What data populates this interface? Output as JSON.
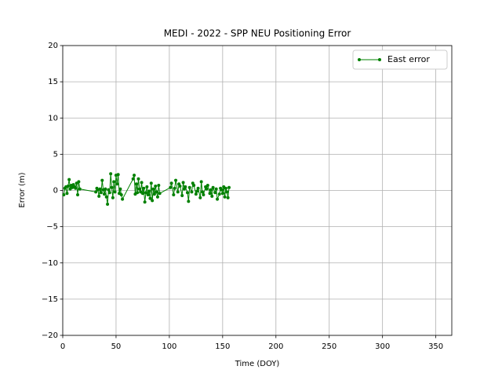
{
  "chart_data": {
    "type": "line",
    "title": "MEDI - 2022 - SPP NEU Positioning Error",
    "xlabel": "Time (DOY)",
    "ylabel": "Error (m)",
    "x": [
      1,
      2,
      3,
      4,
      5,
      6,
      7,
      8,
      9,
      10,
      11,
      12,
      13,
      14,
      15,
      16,
      31,
      32,
      33,
      34,
      35,
      36,
      37,
      38,
      39,
      40,
      41,
      42,
      43,
      44,
      45,
      46,
      47,
      48,
      49,
      50,
      51,
      52,
      53,
      54,
      55,
      56,
      66,
      67,
      68,
      69,
      70,
      71,
      72,
      73,
      74,
      75,
      76,
      77,
      78,
      79,
      80,
      81,
      82,
      83,
      84,
      85,
      86,
      87,
      88,
      89,
      90,
      91,
      101,
      102,
      104,
      105,
      106,
      108,
      109,
      110,
      112,
      113,
      114,
      115,
      117,
      118,
      119,
      121,
      122,
      123,
      125,
      126,
      127,
      129,
      130,
      131,
      132,
      134,
      135,
      136,
      138,
      139,
      140,
      141,
      143,
      144,
      145,
      147,
      148,
      149,
      150,
      151,
      152,
      153,
      154,
      155,
      156
    ],
    "series": [
      {
        "name": "East error",
        "color": "#008000",
        "values": [
          -0.6,
          0.3,
          0.5,
          -0.4,
          0.6,
          1.5,
          0.2,
          0.7,
          0.4,
          0.8,
          0.5,
          0.3,
          1.0,
          -0.6,
          1.2,
          0.2,
          -0.2,
          0.3,
          0.1,
          -0.8,
          0.2,
          -0.3,
          1.4,
          0.1,
          -0.5,
          0.2,
          -0.9,
          -1.9,
          0.1,
          -0.3,
          2.3,
          0.4,
          -1.0,
          1.2,
          -0.2,
          2.1,
          0.9,
          2.2,
          -0.4,
          0.2,
          -0.6,
          -1.2,
          1.6,
          2.1,
          -0.5,
          0.9,
          -0.3,
          1.6,
          0.2,
          -0.2,
          1.1,
          -0.4,
          0.3,
          -1.6,
          -0.3,
          0.5,
          -0.6,
          -0.1,
          -1.1,
          1.0,
          -1.4,
          0.2,
          -0.5,
          0.6,
          -0.2,
          -0.9,
          0.7,
          -0.4,
          0.4,
          1.0,
          -0.6,
          0.3,
          1.4,
          -0.2,
          0.9,
          0.6,
          -0.7,
          1.1,
          0.2,
          0.5,
          -0.3,
          -1.5,
          0.4,
          -0.2,
          1.0,
          0.7,
          -0.5,
          -0.1,
          0.3,
          -1.0,
          1.2,
          -0.2,
          -0.6,
          0.5,
          0.2,
          0.7,
          -0.4,
          0.1,
          -0.8,
          0.4,
          -0.3,
          0.2,
          -1.2,
          -0.5,
          0.3,
          0.1,
          -0.4,
          0.5,
          -0.9,
          0.3,
          -0.2,
          -1.0,
          0.4
        ]
      }
    ],
    "xlim": [
      0,
      365
    ],
    "xticks": [
      0,
      50,
      100,
      150,
      200,
      250,
      300,
      350
    ],
    "ylim": [
      -20,
      20
    ],
    "yticks": [
      {
        "value": -20,
        "label": "−20"
      },
      {
        "value": -15,
        "label": "−15"
      },
      {
        "value": -10,
        "label": "−10"
      },
      {
        "value": -5,
        "label": "−5"
      },
      0,
      5,
      10,
      15,
      20
    ],
    "grid": true,
    "legend": "upper right"
  }
}
